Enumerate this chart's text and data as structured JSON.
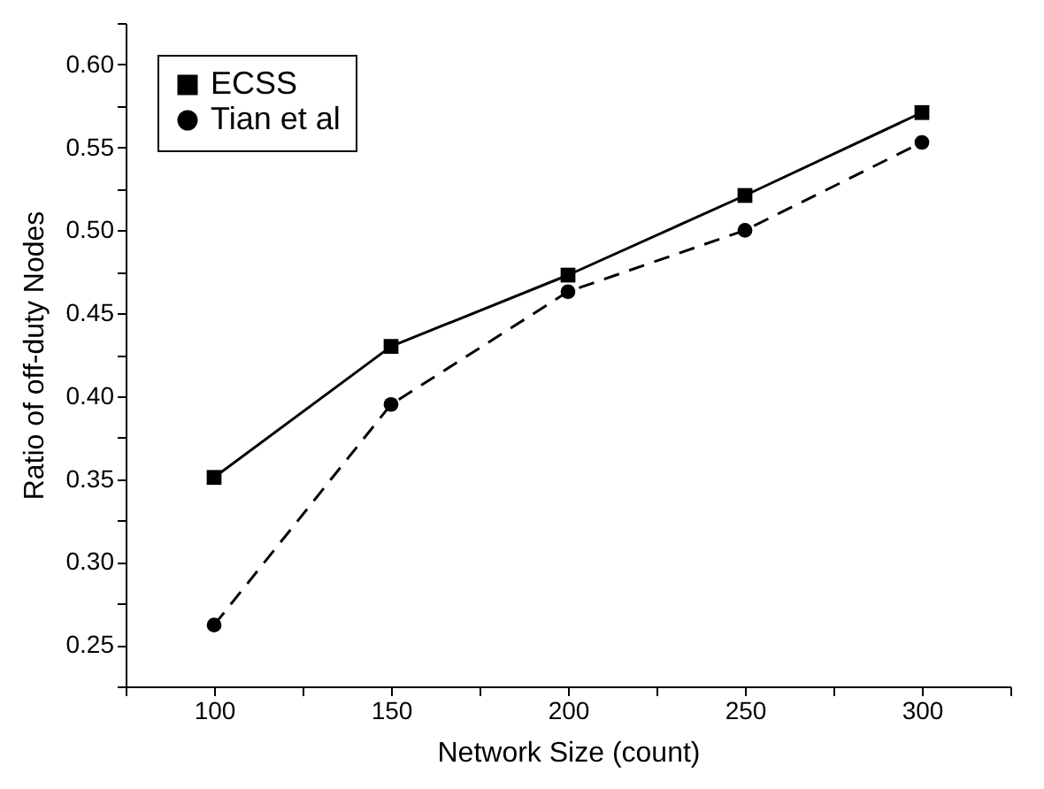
{
  "chart_data": {
    "type": "line",
    "xlabel": "Network Size (count)",
    "ylabel": "Ratio of off-duty Nodes",
    "x": [
      100,
      150,
      200,
      250,
      300
    ],
    "series": [
      {
        "name": "ECSS",
        "color": "#000000",
        "values": [
          0.351,
          0.43,
          0.473,
          0.521,
          0.571
        ],
        "marker": "square",
        "line_style": "solid"
      },
      {
        "name": "Tian et al",
        "color": "#000000",
        "values": [
          0.262,
          0.395,
          0.463,
          0.5,
          0.553
        ],
        "marker": "circle",
        "line_style": "dashed"
      }
    ],
    "xlim": [
      75,
      325
    ],
    "xticks": [
      {
        "value": 75,
        "label": null
      },
      100,
      {
        "value": 125,
        "label": null
      },
      150,
      {
        "value": 175,
        "label": null
      },
      200,
      {
        "value": 225,
        "label": null
      },
      250,
      {
        "value": 275,
        "label": null
      },
      300,
      {
        "value": 325,
        "label": null
      }
    ],
    "ylim": [
      0.225,
      0.625
    ],
    "yticks": [
      {
        "value": 0.225,
        "label": null
      },
      0.25,
      {
        "value": 0.275,
        "label": null
      },
      {
        "value": 0.3,
        "label": "0.30"
      },
      {
        "value": 0.325,
        "label": null
      },
      0.35,
      {
        "value": 0.375,
        "label": null
      },
      {
        "value": 0.4,
        "label": "0.40"
      },
      {
        "value": 0.425,
        "label": null
      },
      0.45,
      {
        "value": 0.475,
        "label": null
      },
      {
        "value": 0.5,
        "label": "0.50"
      },
      {
        "value": 0.525,
        "label": null
      },
      0.55,
      {
        "value": 0.575,
        "label": null
      },
      {
        "value": 0.6,
        "label": "0.60"
      },
      {
        "value": 0.625,
        "label": null
      }
    ],
    "grid": false,
    "legend": "top left"
  }
}
